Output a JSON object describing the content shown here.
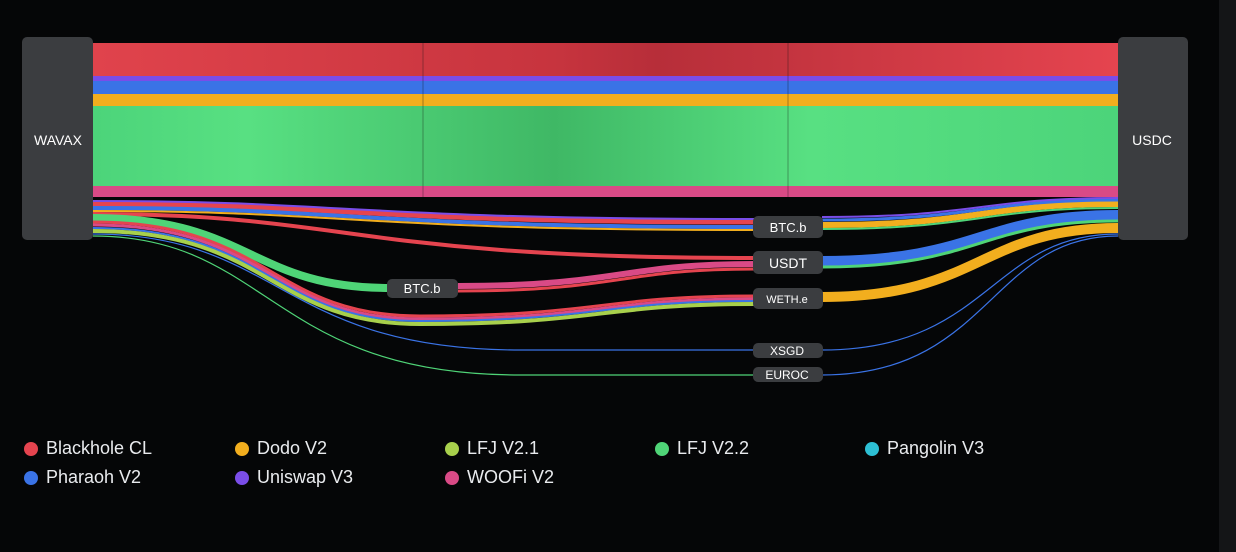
{
  "nodes": {
    "source": "WAVAX",
    "target": "USDC"
  },
  "intermediates": [
    {
      "key": "btcb_right",
      "label": "BTC.b"
    },
    {
      "key": "usdt",
      "label": "USDT"
    },
    {
      "key": "btcb_mid",
      "label": "BTC.b"
    },
    {
      "key": "wethe",
      "label": "WETH.e"
    },
    {
      "key": "xsgd",
      "label": "XSGD"
    },
    {
      "key": "euroc",
      "label": "EUROC"
    }
  ],
  "colors": {
    "Blackhole CL": "#e5444f",
    "Dodo V2": "#f2ae1e",
    "LFJ V2.1": "#a8d04c",
    "LFJ V2.2": "#4fd477",
    "Pangolin V3": "#2dbfd4",
    "Pharaoh V2": "#3a73e6",
    "Uniswap V3": "#7a4de8",
    "WOOFi V2": "#d94a86"
  },
  "legend": [
    "Blackhole CL",
    "Dodo V2",
    "LFJ V2.1",
    "LFJ V2.2",
    "Pangolin V3",
    "Pharaoh V2",
    "Uniswap V3",
    "WOOFi V2"
  ]
}
